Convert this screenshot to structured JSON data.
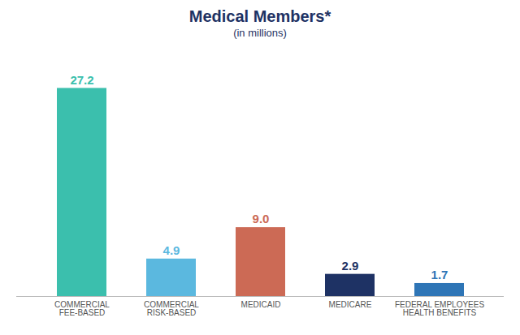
{
  "chart_data": {
    "type": "bar",
    "title": "Medical Members*",
    "subtitle": "(in millions)",
    "categories": [
      "COMMERCIAL\nFEE-BASED",
      "COMMERCIAL\nRISK-BASED",
      "MEDICAID",
      "MEDICARE",
      "FEDERAL EMPLOYEES\nHEALTH BENEFITS"
    ],
    "values": [
      27.2,
      4.9,
      9.0,
      2.9,
      1.7
    ],
    "value_labels": [
      "27.2",
      "4.9",
      "9.0",
      "2.9",
      "1.7"
    ],
    "colors": [
      "#3bbfad",
      "#5bb8df",
      "#cc6a55",
      "#1e3264",
      "#2e75b6"
    ],
    "ylim": [
      0,
      30
    ],
    "data_labels": true,
    "tick_labels": "x",
    "grid": false
  }
}
